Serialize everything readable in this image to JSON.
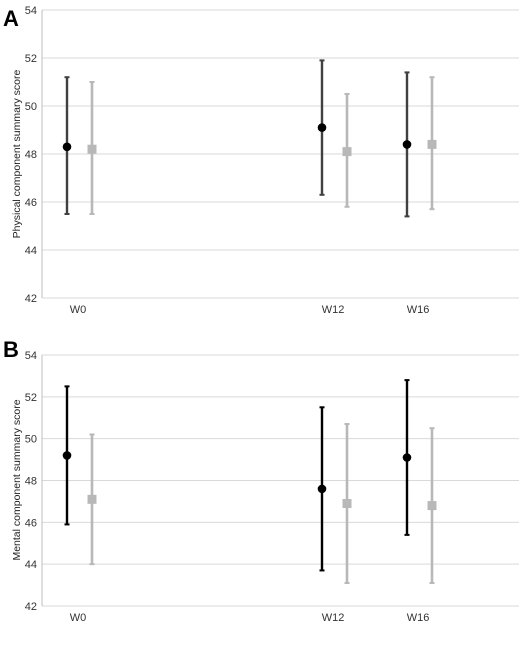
{
  "chart_data": [
    {
      "panel_label": "A",
      "type": "scatter",
      "ylabel": "Physical component summary score",
      "ylim": [
        42,
        54
      ],
      "yticks": [
        42,
        44,
        46,
        48,
        50,
        52,
        54
      ],
      "grid": true,
      "categories": [
        "W0",
        "W12",
        "W16"
      ],
      "category_weeks": [
        0,
        12,
        16
      ],
      "series": [
        {
          "marker": "circle",
          "color": "#000000",
          "bar_color": "#404040",
          "mean": [
            48.3,
            49.1,
            48.4
          ],
          "lower": [
            45.5,
            46.3,
            45.4
          ],
          "upper": [
            51.2,
            51.9,
            51.4
          ]
        },
        {
          "marker": "square",
          "color": "#b8b8b8",
          "bar_color": "#b8b8b8",
          "mean": [
            48.2,
            48.1,
            48.4
          ],
          "lower": [
            45.5,
            45.8,
            45.7
          ],
          "upper": [
            51.0,
            50.5,
            51.2
          ]
        }
      ]
    },
    {
      "panel_label": "B",
      "type": "scatter",
      "ylabel": "Mental component summary score",
      "ylim": [
        42,
        54
      ],
      "yticks": [
        42,
        44,
        46,
        48,
        50,
        52,
        54
      ],
      "grid": true,
      "categories": [
        "W0",
        "W12",
        "W16"
      ],
      "category_weeks": [
        0,
        12,
        16
      ],
      "series": [
        {
          "marker": "circle",
          "color": "#000000",
          "bar_color": "#000000",
          "mean": [
            49.2,
            47.6,
            49.1
          ],
          "lower": [
            45.9,
            43.7,
            45.4
          ],
          "upper": [
            52.5,
            51.5,
            52.8
          ]
        },
        {
          "marker": "square",
          "color": "#b8b8b8",
          "bar_color": "#b8b8b8",
          "mean": [
            47.1,
            46.9,
            46.8
          ],
          "lower": [
            44.0,
            43.1,
            43.1
          ],
          "upper": [
            50.2,
            50.7,
            50.5
          ]
        }
      ]
    }
  ]
}
